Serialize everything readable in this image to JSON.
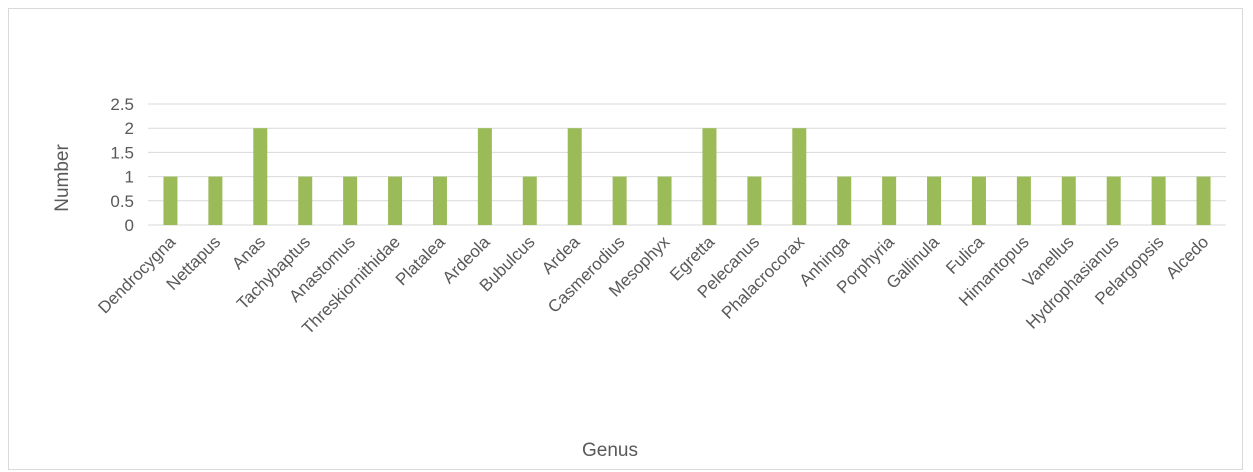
{
  "chart_data": {
    "type": "bar",
    "title": "",
    "xlabel": "Genus",
    "ylabel": "Number",
    "ylim": [
      0,
      2.5
    ],
    "yticks": [
      "0",
      "0.5",
      "1",
      "1.5",
      "2",
      "2.5"
    ],
    "grid": true,
    "bar_color": "#9bbb59",
    "grid_color": "#d9d9d9",
    "text_color": "#595959",
    "categories": [
      "Dendrocygna",
      "Nettapus",
      "Anas",
      "Tachybaptus",
      "Anastomus",
      "Threskiornithidae",
      "Platalea",
      "Ardeola",
      "Bubulcus",
      "Ardea",
      "Casmerodius",
      "Mesophyx",
      "Egretta",
      "Pelecanus",
      "Phalacrocorax",
      "Anhinga",
      "Porphyria",
      "Gallinula",
      "Fulica",
      "Himantopus",
      "Vanellus",
      "Hydrophasianus",
      "Pelargopsis",
      "Alcedo"
    ],
    "values": [
      1,
      1,
      2,
      1,
      1,
      1,
      1,
      2,
      1,
      2,
      1,
      1,
      2,
      1,
      2,
      1,
      1,
      1,
      1,
      1,
      1,
      1,
      1,
      1
    ]
  }
}
